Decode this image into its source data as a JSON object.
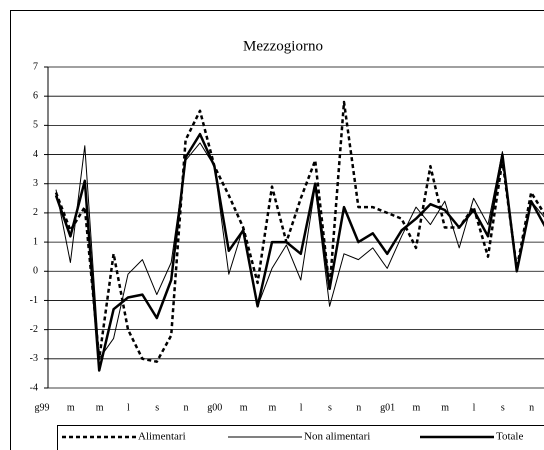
{
  "chart_data": {
    "type": "line",
    "title": "Mezzogiorno",
    "categories": [
      "g99",
      null,
      "m",
      null,
      "m",
      null,
      "l",
      null,
      "s",
      null,
      "n",
      null,
      "g00",
      null,
      "m",
      null,
      "m",
      null,
      "l",
      null,
      "s",
      null,
      "n",
      null,
      "g01",
      null,
      "m",
      null,
      "m",
      null,
      "l",
      null,
      "s",
      null,
      "n"
    ],
    "series": [
      {
        "name": "Alimentari",
        "color": "#000000",
        "style": "dashed",
        "width": 2.5,
        "values": [
          2.7,
          1.4,
          2.2,
          -3.0,
          0.6,
          -2.0,
          -3.0,
          -3.1,
          -2.2,
          4.5,
          5.5,
          3.6,
          2.6,
          1.5,
          -0.4,
          2.9,
          1.0,
          2.5,
          3.8,
          -0.6,
          5.8,
          2.2,
          2.2,
          2.0,
          1.8,
          0.8,
          3.6,
          1.5,
          1.5,
          2.2,
          0.5,
          3.8,
          0.1,
          2.7,
          1.9
        ]
      },
      {
        "name": "Non alimentari",
        "color": "#000000",
        "style": "solid",
        "width": 1,
        "values": [
          2.8,
          0.3,
          4.3,
          -3.0,
          -2.3,
          -0.1,
          0.4,
          -0.8,
          0.3,
          3.8,
          4.4,
          3.6,
          -0.1,
          1.5,
          -1.2,
          0.1,
          0.9,
          -0.3,
          2.9,
          -1.2,
          0.6,
          0.4,
          0.8,
          0.1,
          1.2,
          2.2,
          1.6,
          2.4,
          0.8,
          2.5,
          1.6,
          4.1,
          0.1,
          2.4,
          1.8
        ]
      },
      {
        "name": "Totale",
        "color": "#000000",
        "style": "solid",
        "width": 2.5,
        "values": [
          2.6,
          1.2,
          3.1,
          -3.4,
          -1.3,
          -0.9,
          -0.8,
          -1.6,
          -0.3,
          3.9,
          4.7,
          3.6,
          0.7,
          1.4,
          -1.2,
          1.0,
          1.0,
          0.6,
          3.0,
          -0.6,
          2.2,
          1.0,
          1.3,
          0.6,
          1.4,
          1.8,
          2.3,
          2.1,
          1.5,
          2.1,
          1.2,
          4.0,
          0.0,
          2.4,
          1.5
        ]
      }
    ],
    "ylim": [
      -4,
      7
    ],
    "yticks": [
      -4,
      -3,
      -2,
      -1,
      0,
      1,
      2,
      3,
      4,
      5,
      6,
      7
    ],
    "grid": true,
    "legend": "bottom"
  }
}
